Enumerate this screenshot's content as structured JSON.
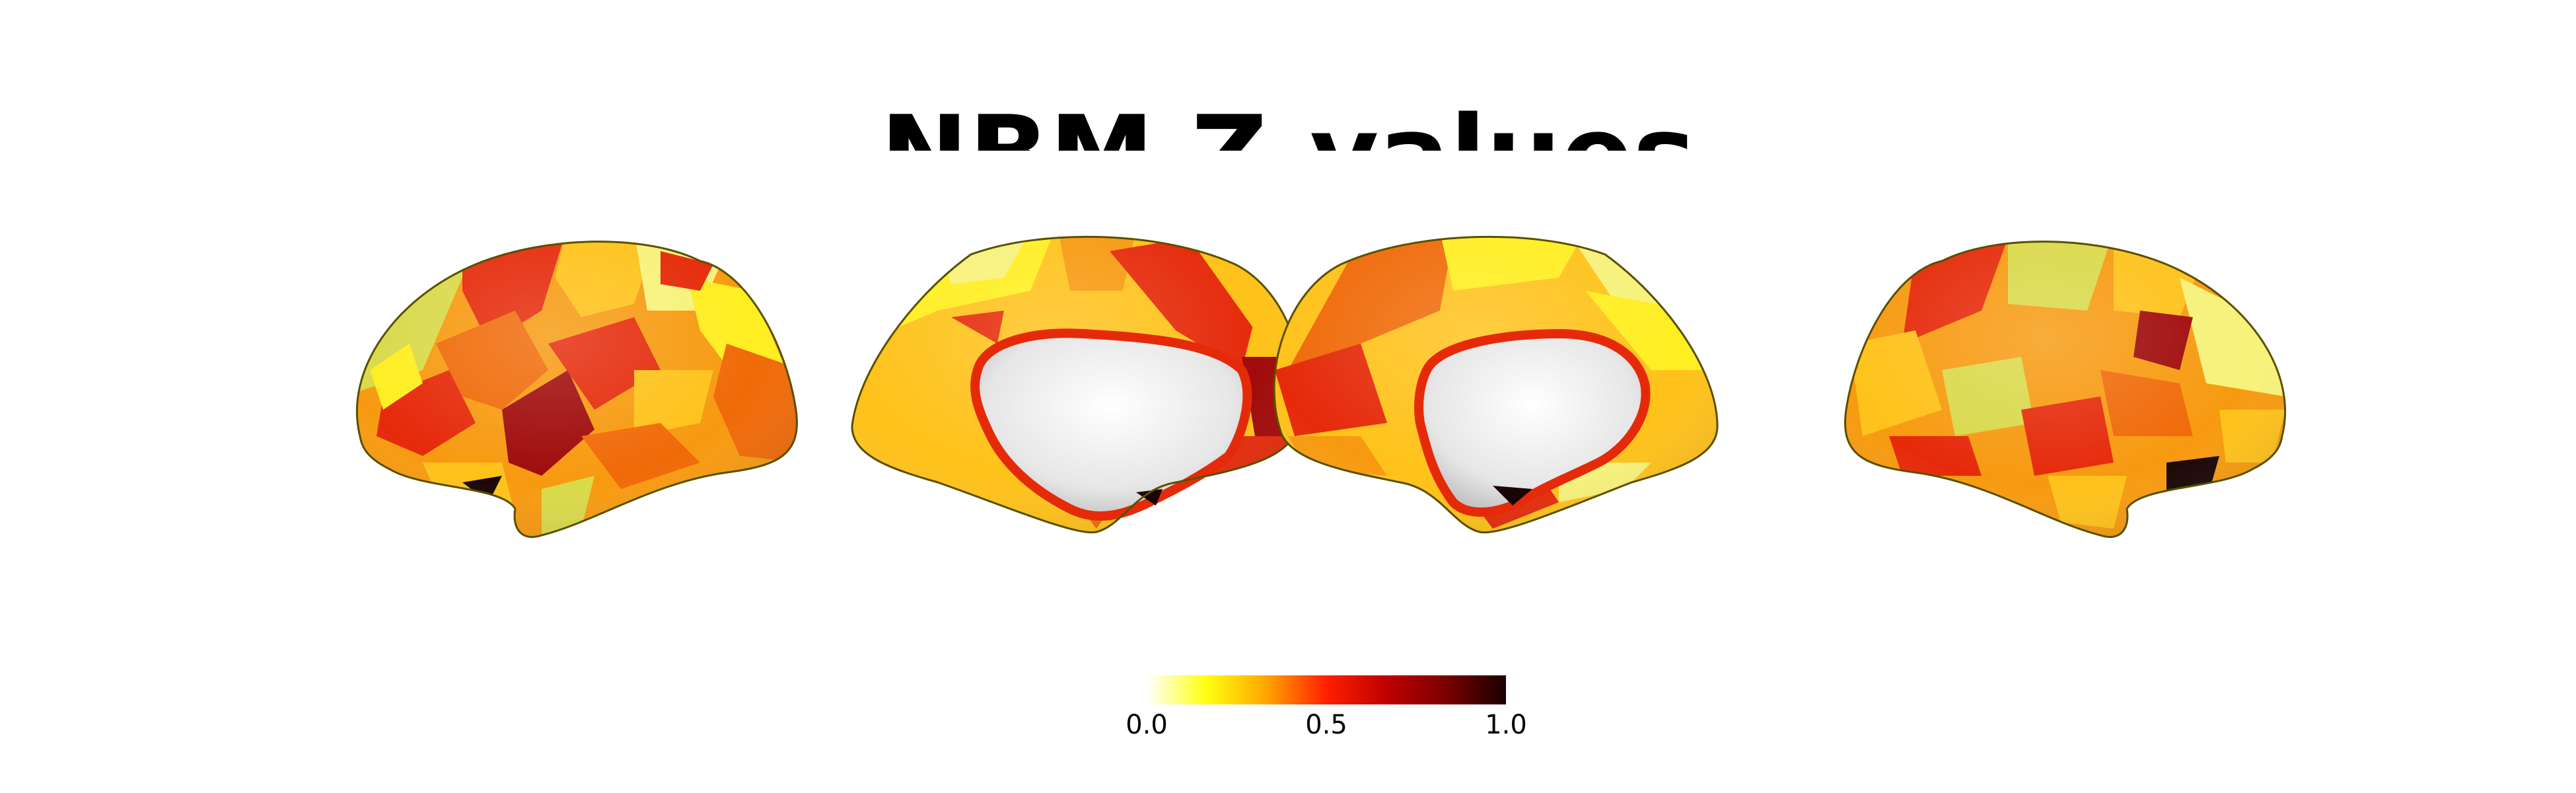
{
  "figure": {
    "title": "NBM Z-values",
    "views": [
      "left-lateral",
      "left-medial",
      "right-medial",
      "right-lateral"
    ]
  },
  "colorbar": {
    "colormap": "hot_r",
    "range": [
      0.0,
      1.0
    ],
    "ticks": [
      "0.0",
      "0.5",
      "1.0"
    ],
    "colors": [
      "#ffffff",
      "#ffff10",
      "#ffa500",
      "#ff2000",
      "#c00000",
      "#7a0000",
      "#1a0000"
    ]
  },
  "palette": {
    "pale": "#f7f27a",
    "yellow": "#ffee20",
    "olive_yellow": "#d9d94a",
    "orange_yellow": "#ffc21a",
    "orange": "#f79a10",
    "dark_orange": "#f06a08",
    "red": "#e52a0a",
    "dark_red": "#a00a0a",
    "near_black": "#1a0505",
    "medial_wall": "#efefef"
  }
}
